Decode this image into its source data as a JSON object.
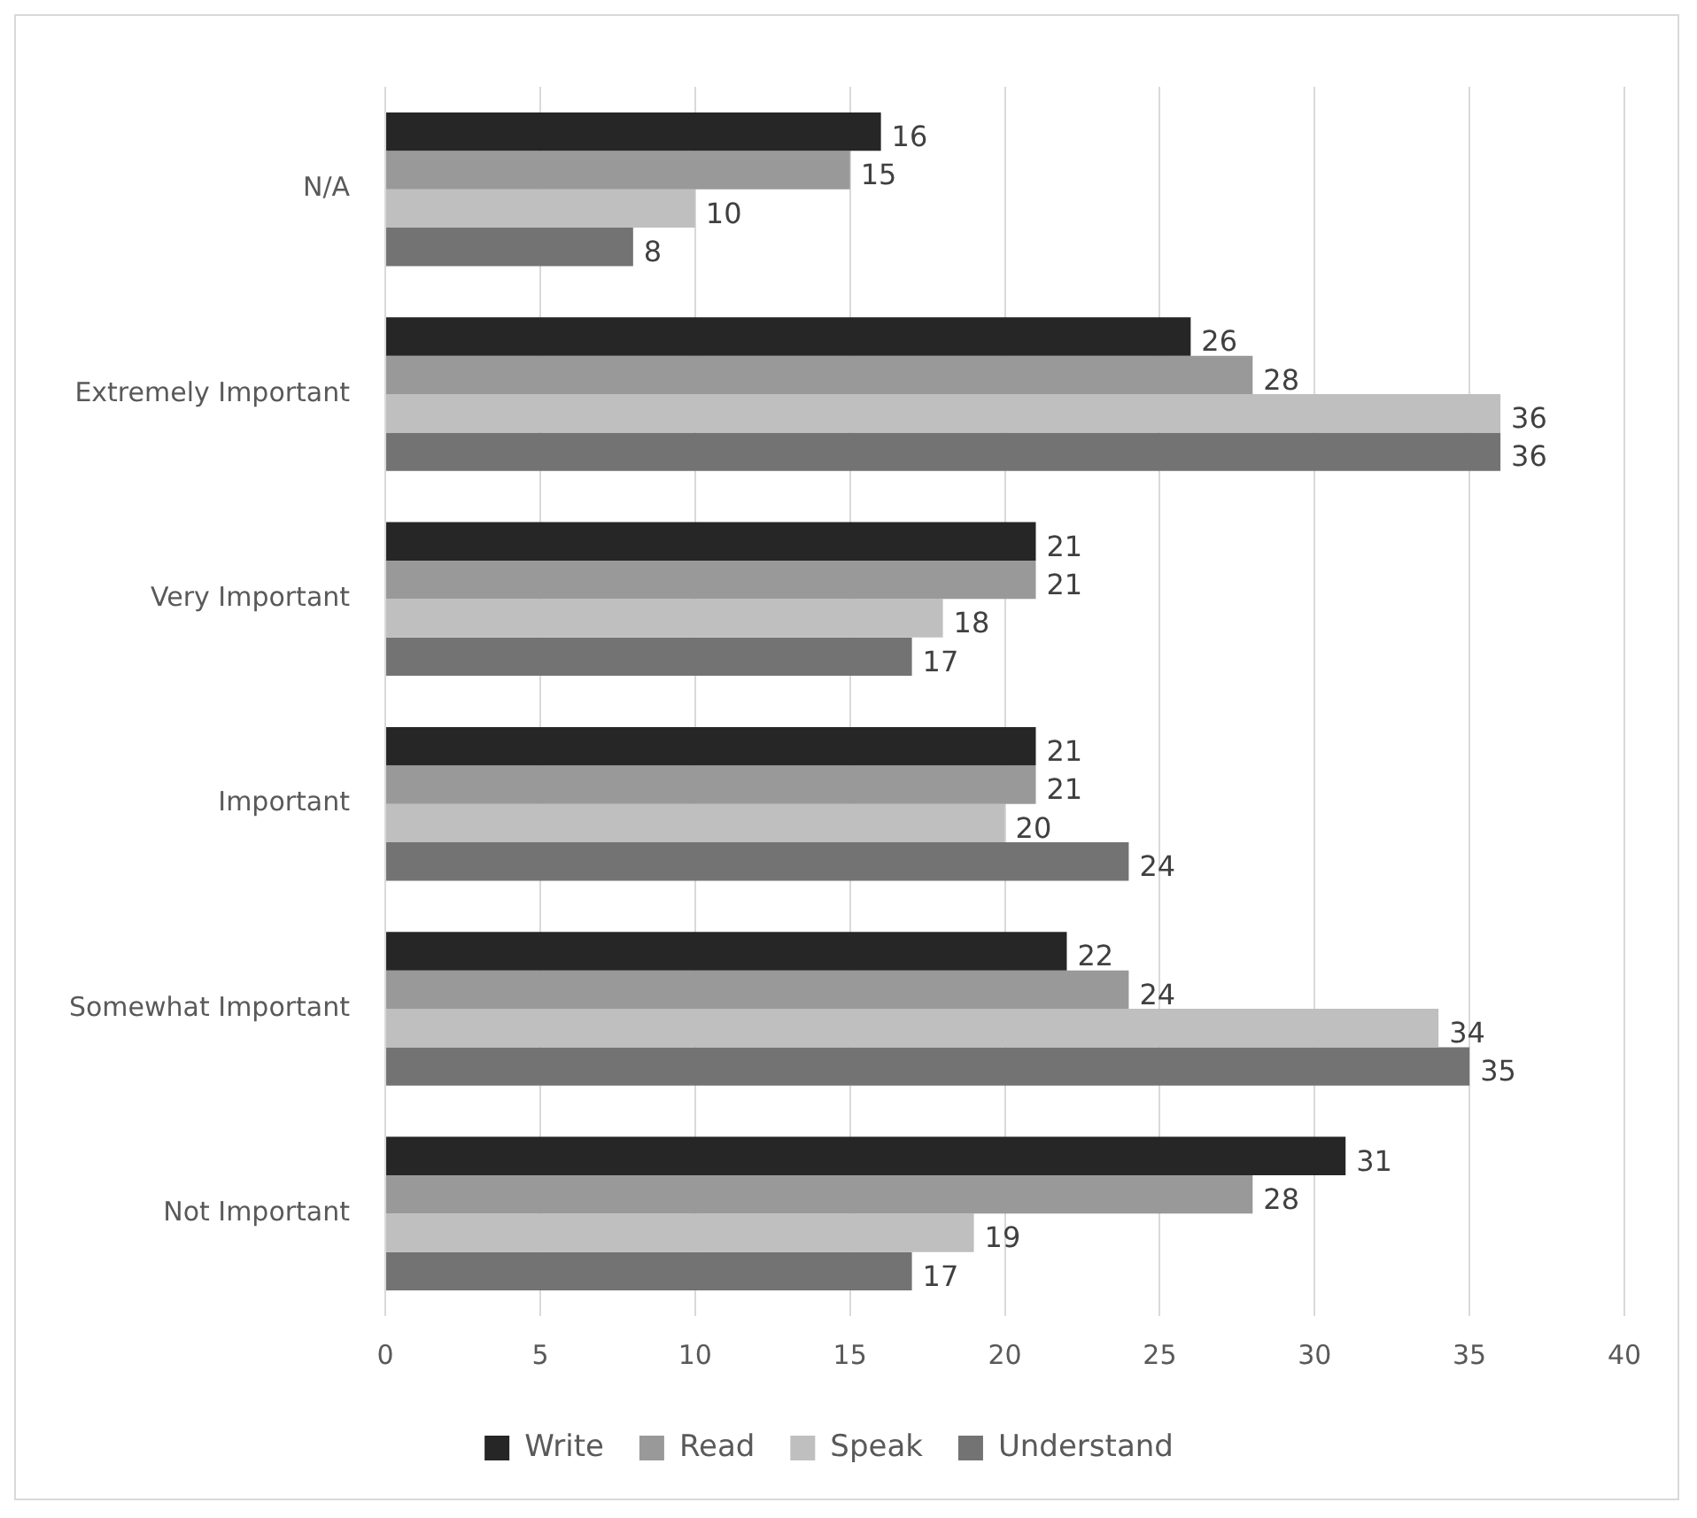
{
  "chart_data": {
    "type": "bar",
    "orientation": "horizontal",
    "categories": [
      "N/A",
      "Extremely Important",
      "Very Important",
      "Important",
      "Somewhat Important",
      "Not Important"
    ],
    "series": [
      {
        "name": "Write",
        "color": "#262626",
        "values": [
          16,
          26,
          21,
          21,
          22,
          31
        ]
      },
      {
        "name": "Read",
        "color": "#999999",
        "values": [
          15,
          28,
          21,
          21,
          24,
          28
        ]
      },
      {
        "name": "Speak",
        "color": "#bfbfbf",
        "values": [
          10,
          36,
          18,
          20,
          34,
          19
        ]
      },
      {
        "name": "Understand",
        "color": "#737373",
        "values": [
          8,
          36,
          17,
          24,
          35,
          17
        ]
      }
    ],
    "xlim": [
      0,
      40
    ],
    "xticks": [
      0,
      5,
      10,
      15,
      20,
      25,
      30,
      35,
      40
    ],
    "grid": "x",
    "legend": "bottom",
    "data_labels": true
  }
}
